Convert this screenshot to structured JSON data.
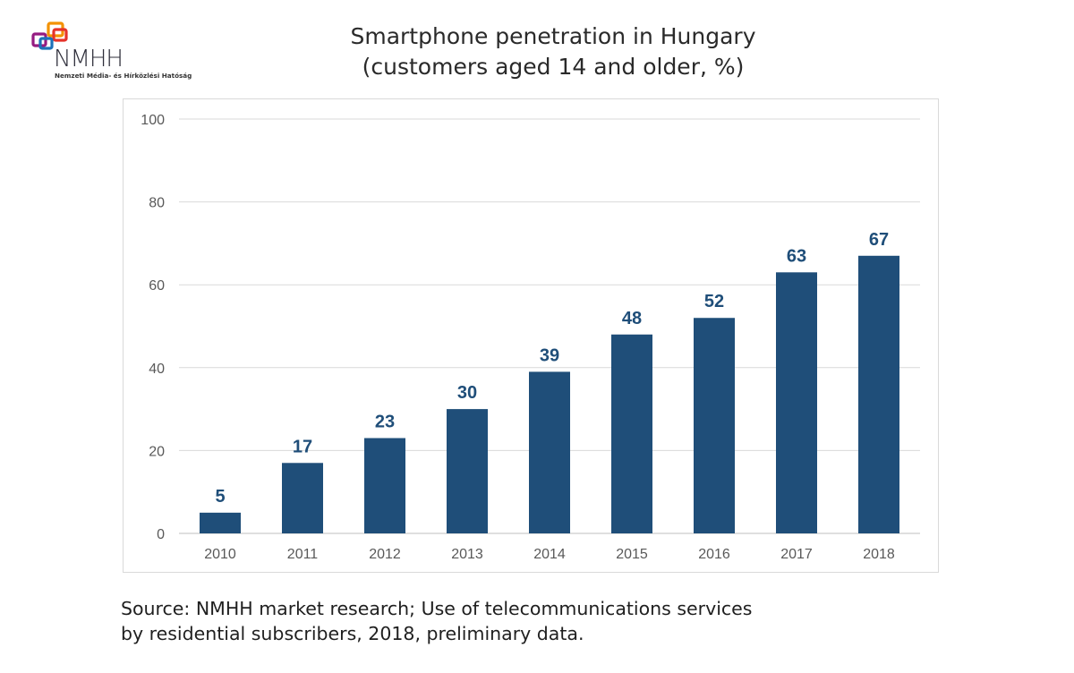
{
  "logo": {
    "wordmark": "NMHH",
    "subtitle": "Nemzeti Média- és Hírközlési Hatóság",
    "colors": [
      "#e6332a",
      "#f39200",
      "#1d71b8",
      "#951b81"
    ]
  },
  "title": {
    "line1": "Smartphone penetration in Hungary",
    "line2": "(customers aged 14 and older, %)"
  },
  "source": {
    "line1": "Source: NMHH market research; Use of telecommunications services",
    "line2": "by residential subscribers, 2018, preliminary data."
  },
  "chart_data": {
    "type": "bar",
    "categories": [
      "2010",
      "2011",
      "2012",
      "2013",
      "2014",
      "2015",
      "2016",
      "2017",
      "2018"
    ],
    "values": [
      5,
      17,
      23,
      30,
      39,
      48,
      52,
      63,
      67
    ],
    "data_labels": [
      "5",
      "17",
      "23",
      "30",
      "39",
      "48",
      "52",
      "63",
      "67"
    ],
    "ylim": [
      0,
      100
    ],
    "yticks": [
      0,
      20,
      40,
      60,
      80,
      100
    ],
    "grid": true,
    "legend": "none",
    "bar_color": "#1f4e79",
    "label_color": "#1f4e79",
    "grid_color": "#d9d9d9"
  }
}
